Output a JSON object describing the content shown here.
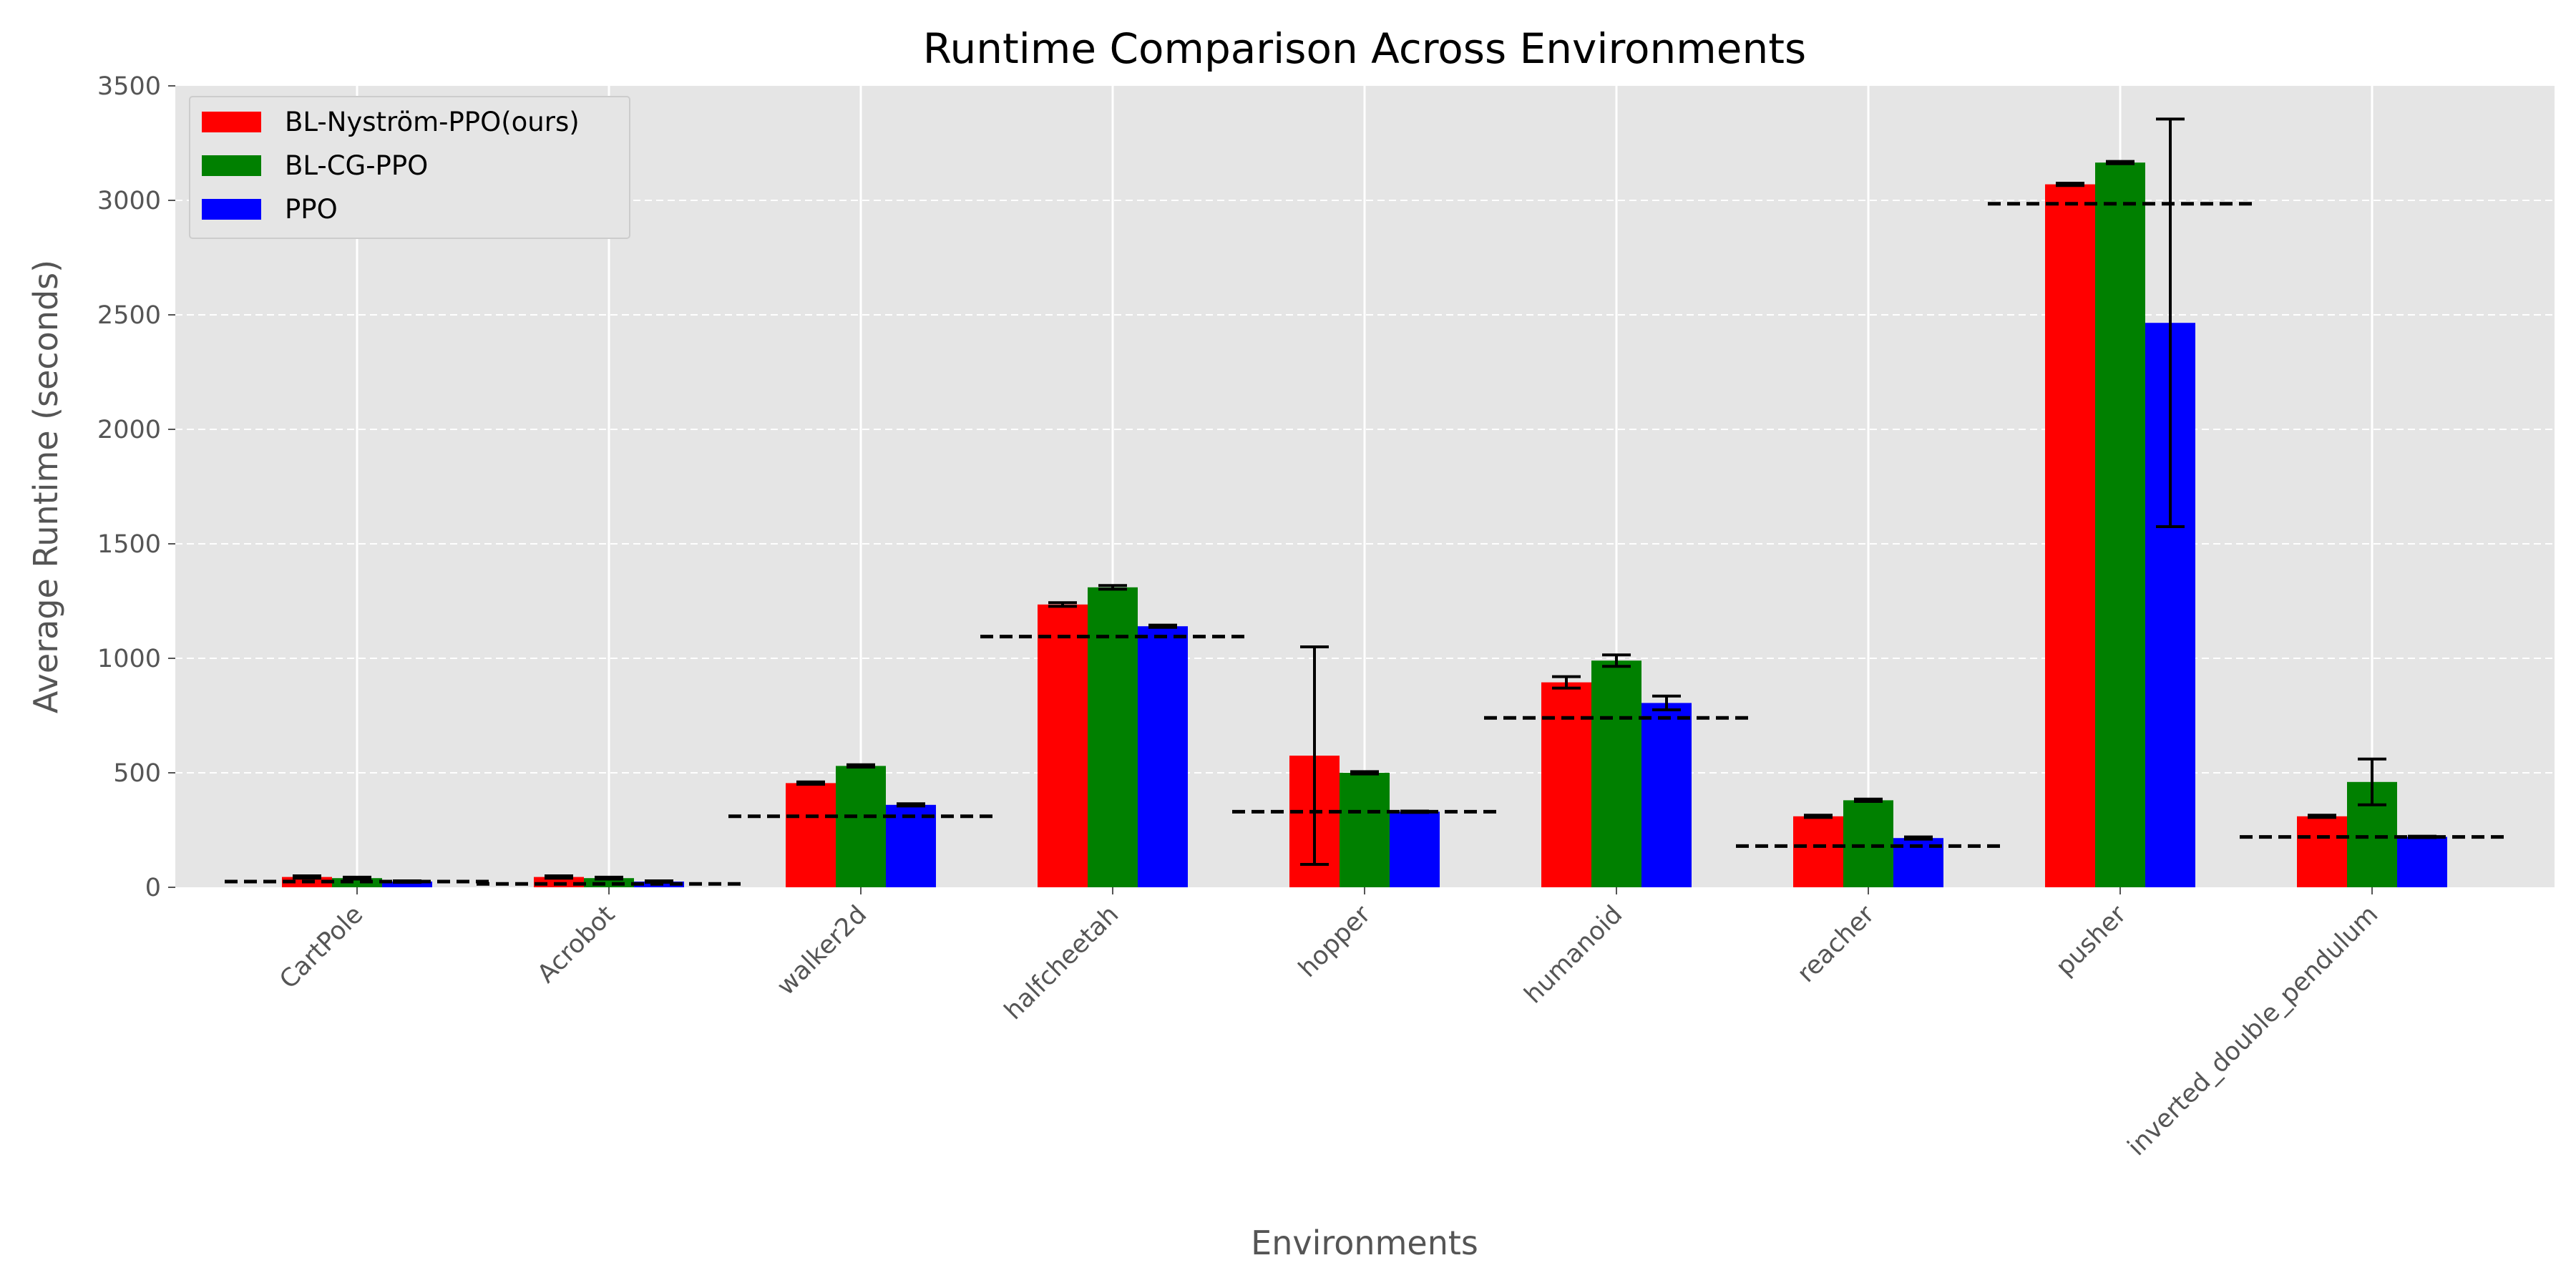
{
  "chart_data": {
    "type": "bar",
    "title": "Runtime Comparison Across Environments",
    "xlabel": "Environments",
    "ylabel": "Average Runtime (seconds)",
    "ylim": [
      0,
      3500
    ],
    "yticks": [
      "0",
      "500",
      "1000",
      "1500",
      "2000",
      "2500",
      "3000",
      "3500"
    ],
    "grid": true,
    "legend_position": "top-left",
    "categories": [
      "CartPole",
      "Acrobot",
      "walker2d",
      "halfcheetah",
      "hopper",
      "humanoid",
      "reacher",
      "pusher",
      "inverted_double_pendulum"
    ],
    "series": [
      {
        "name": "BL-Nyström-PPO(ours)",
        "color": "#ff0000",
        "values": [
          45,
          45,
          455,
          1235,
          575,
          895,
          310,
          3070,
          310
        ],
        "err": [
          5,
          5,
          5,
          8,
          475,
          25,
          5,
          5,
          5
        ]
      },
      {
        "name": "BL-CG-PPO",
        "color": "#008000",
        "values": [
          40,
          40,
          530,
          1310,
          500,
          990,
          380,
          3165,
          460
        ],
        "err": [
          4,
          4,
          5,
          8,
          5,
          25,
          5,
          5,
          100
        ]
      },
      {
        "name": "PPO",
        "color": "#0000ff",
        "values": [
          25,
          25,
          360,
          1140,
          330,
          805,
          215,
          2465,
          220
        ],
        "err": [
          3,
          3,
          5,
          5,
          3,
          30,
          5,
          890,
          3
        ]
      }
    ],
    "reference_lines": [
      25,
      15,
      310,
      1095,
      330,
      740,
      180,
      2985,
      220
    ]
  }
}
